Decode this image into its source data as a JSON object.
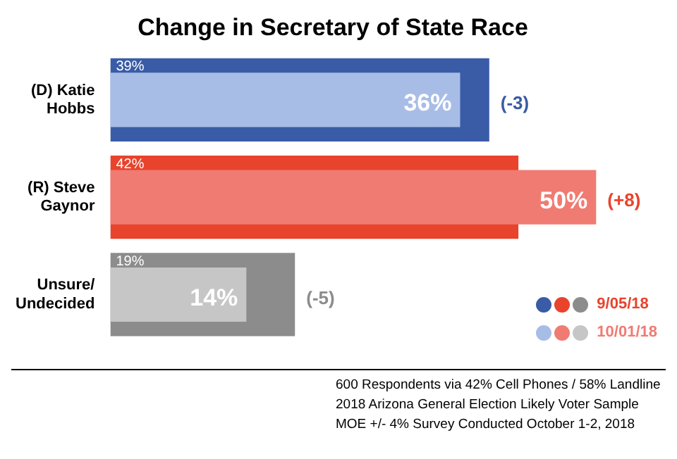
{
  "chart_data": {
    "type": "bar",
    "orientation": "horizontal",
    "title": "Change in Secretary of State Race",
    "categories": [
      "(D) Katie Hobbs",
      "(R) Steve Gaynor",
      "Unsure/ Undecided"
    ],
    "series": [
      {
        "name": "9/05/18",
        "colors": [
          "#3a5ca6",
          "#e8432c",
          "#8c8c8c"
        ],
        "values": [
          39,
          42,
          19
        ],
        "value_labels": [
          "39%",
          "42%",
          "19%"
        ]
      },
      {
        "name": "10/01/18",
        "colors": [
          "#a8bde6",
          "#f07b72",
          "#c6c6c6"
        ],
        "values": [
          36,
          50,
          14
        ],
        "value_labels": [
          "36%",
          "50%",
          "14%"
        ]
      }
    ],
    "annotations": [
      {
        "text": "(-3)",
        "x": 39,
        "y": "(D) Katie Hobbs"
      },
      {
        "text": "(+8)",
        "x": 50,
        "y": "(R) Steve Gaynor"
      },
      {
        "text": "(-5)",
        "x": 19,
        "y": "Unsure/ Undecided"
      },
      "600 Respondents via 42% Cell Phones / 58% Landline",
      "2018 Arizona General Election Likely Voter Sample",
      "MOE +/- 4% Survey Conducted October 1-2, 2018"
    ],
    "legend": "bottom right",
    "grid": false
  }
}
